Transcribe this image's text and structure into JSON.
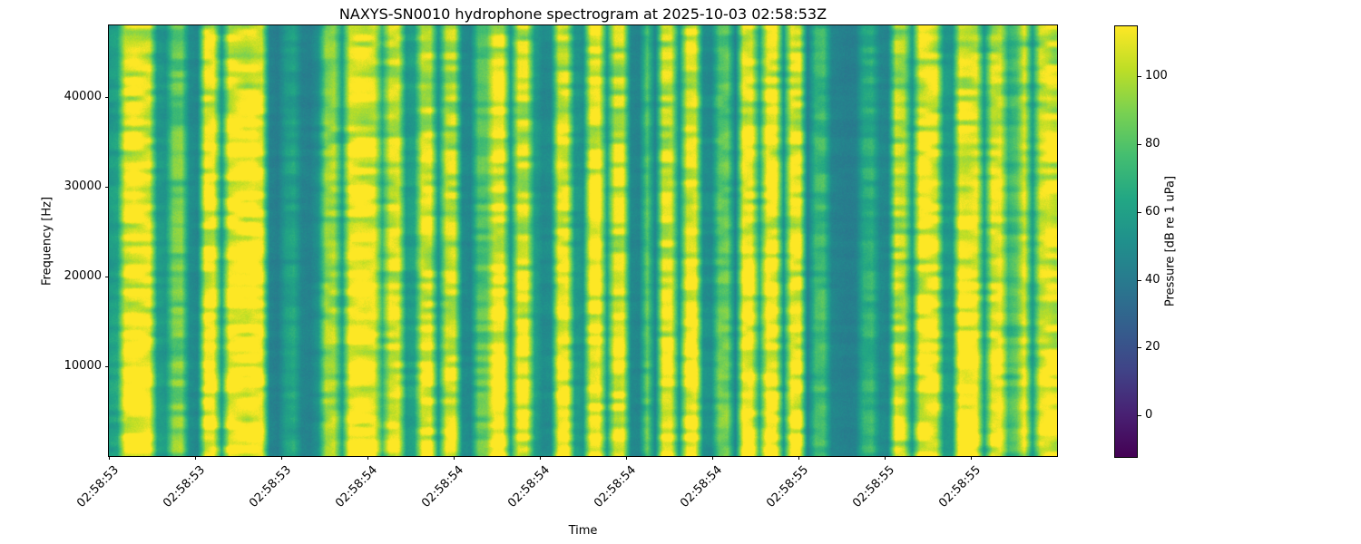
{
  "chart_data": {
    "type": "heatmap",
    "title": "NAXYS-SN0010 hydrophone spectrogram at 2025-10-03 02:58:53Z",
    "xlabel": "Time",
    "ylabel": "Frequency [Hz]",
    "x_tick_labels": [
      "02:58:53",
      "02:58:53",
      "02:58:53",
      "02:58:54",
      "02:58:54",
      "02:58:54",
      "02:58:54",
      "02:58:54",
      "02:58:55",
      "02:58:55",
      "02:58:55"
    ],
    "y_ticks": [
      10000,
      20000,
      30000,
      40000
    ],
    "ylim": [
      0,
      48000
    ],
    "grid": false,
    "colormap": "viridis",
    "colorbar": {
      "label": "Pressure [dB re 1 uPa]",
      "ticks": [
        0,
        20,
        40,
        60,
        80,
        100
      ],
      "vmin": -12,
      "vmax": 115,
      "position": "right"
    },
    "time_envelope": [
      0.3,
      0.34,
      0.92,
      1.0,
      0.97,
      0.95,
      0.3,
      0.26,
      0.62,
      0.66,
      0.2,
      0.16,
      0.95,
      1.0,
      0.34,
      1.0,
      0.98,
      0.95,
      1.0,
      0.94,
      0.14,
      0.1,
      0.3,
      0.36,
      0.14,
      0.12,
      0.22,
      0.72,
      0.78,
      0.34,
      0.95,
      1.0,
      0.97,
      0.92,
      0.45,
      0.88,
      0.92,
      0.3,
      0.34,
      0.9,
      0.94,
      0.28,
      0.85,
      0.88,
      0.18,
      0.16,
      0.55,
      0.58,
      0.95,
      1.0,
      0.3,
      0.9,
      0.92,
      0.32,
      0.18,
      0.2,
      0.92,
      0.95,
      0.28,
      0.24,
      0.95,
      1.0,
      0.32,
      0.88,
      0.9,
      0.16,
      0.14,
      0.58,
      0.16,
      0.9,
      0.92,
      0.28,
      0.96,
      1.0,
      0.22,
      0.2,
      0.6,
      0.62,
      0.15,
      0.95,
      1.0,
      0.4,
      1.0,
      0.98,
      0.28,
      0.94,
      0.96,
      0.12,
      0.48,
      0.52,
      0.15,
      0.12,
      0.1,
      0.12,
      0.4,
      0.45,
      0.18,
      0.15,
      0.85,
      0.8,
      0.3,
      0.95,
      1.0,
      0.95,
      0.3,
      0.28,
      1.0,
      0.97,
      0.95,
      0.32,
      0.88,
      0.92,
      0.45,
      0.55,
      0.9,
      0.3,
      0.85,
      0.95,
      0.9
    ],
    "freq_profile_bottom_to_top": [
      1.04,
      1.02,
      1.0,
      0.97,
      0.95,
      0.93,
      0.95,
      0.92,
      0.9,
      0.88
    ]
  }
}
